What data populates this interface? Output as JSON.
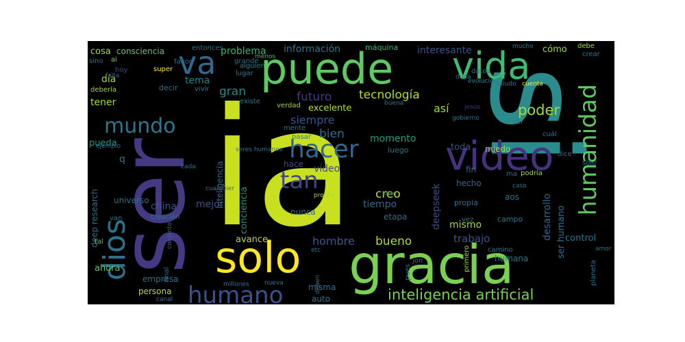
{
  "word_cloud": {
    "background": "#000000",
    "palette": [
      "#440154",
      "#46327e",
      "#365c8d",
      "#277f8e",
      "#1fa187",
      "#4ac16d",
      "#a0da39",
      "#fde725"
    ],
    "words": [
      {
        "text": "ia"
      },
      {
        "text": "si"
      },
      {
        "text": "ser"
      },
      {
        "text": "gracia"
      },
      {
        "text": "solo"
      },
      {
        "text": "puede"
      },
      {
        "text": "video"
      },
      {
        "text": "vida"
      },
      {
        "text": "va"
      },
      {
        "text": "dios"
      },
      {
        "text": "humanidad"
      },
      {
        "text": "hacer"
      },
      {
        "text": "humano"
      },
      {
        "text": "tan"
      },
      {
        "text": "mundo"
      },
      {
        "text": "inteligencia artificial"
      },
      {
        "text": "poder"
      },
      {
        "text": "tecnología"
      },
      {
        "text": "futuro"
      },
      {
        "text": "bien"
      },
      {
        "text": "siempre"
      },
      {
        "text": "información"
      },
      {
        "text": "interesante"
      },
      {
        "text": "problema"
      },
      {
        "text": "tema"
      },
      {
        "text": "gran"
      },
      {
        "text": "día"
      },
      {
        "text": "tener"
      },
      {
        "text": "excelente"
      },
      {
        "text": "así"
      },
      {
        "text": "momento"
      },
      {
        "text": "mejor"
      },
      {
        "text": "creo"
      },
      {
        "text": "bueno"
      },
      {
        "text": "hombre"
      },
      {
        "text": "trabajo"
      },
      {
        "text": "china"
      },
      {
        "text": "tiempo"
      },
      {
        "text": "mismo"
      },
      {
        "text": "deepseek"
      },
      {
        "text": "desarrollo"
      },
      {
        "text": "ser humano"
      },
      {
        "text": "control"
      },
      {
        "text": "conciencia"
      },
      {
        "text": "inteligencia"
      },
      {
        "text": "vídeo"
      },
      {
        "text": "avance"
      },
      {
        "text": "cosa"
      },
      {
        "text": "consciencia"
      },
      {
        "text": "pueda"
      },
      {
        "text": "universo"
      },
      {
        "text": "deep research"
      },
      {
        "text": "ahora"
      },
      {
        "text": "empresa"
      },
      {
        "text": "persona"
      },
      {
        "text": "auto"
      },
      {
        "text": "misma"
      },
      {
        "text": "humana"
      },
      {
        "text": "campo"
      },
      {
        "text": "fin"
      },
      {
        "text": "hecho"
      },
      {
        "text": "aos"
      },
      {
        "text": "propia"
      },
      {
        "text": "toda"
      },
      {
        "text": "miedo"
      },
      {
        "text": "cómo"
      },
      {
        "text": "máquina"
      },
      {
        "text": "luego"
      },
      {
        "text": "etapa"
      },
      {
        "text": "nunca"
      },
      {
        "text": "hace"
      },
      {
        "text": "decir"
      },
      {
        "text": "lugar"
      },
      {
        "text": "alguien"
      },
      {
        "text": "grande"
      },
      {
        "text": "existe"
      },
      {
        "text": "super"
      },
      {
        "text": "hoy"
      },
      {
        "text": "debería"
      },
      {
        "text": "falta"
      },
      {
        "text": "ai"
      },
      {
        "text": "sino"
      },
      {
        "text": "favor"
      },
      {
        "text": "vivir"
      },
      {
        "text": "entonces"
      },
      {
        "text": "menos"
      },
      {
        "text": "verdad"
      },
      {
        "text": "mente"
      },
      {
        "text": "pasar"
      },
      {
        "text": "datos"
      },
      {
        "text": "duda"
      },
      {
        "text": "evolucion"
      },
      {
        "text": "saludo"
      },
      {
        "text": "cuenta"
      },
      {
        "text": "gobierno"
      },
      {
        "text": "cuál"
      },
      {
        "text": "ver"
      },
      {
        "text": "ma"
      },
      {
        "text": "debe"
      },
      {
        "text": "crear"
      },
      {
        "text": "mucho"
      },
      {
        "text": "dice"
      },
      {
        "text": "sólo"
      },
      {
        "text": "podría"
      },
      {
        "text": "caso"
      },
      {
        "text": "vez"
      },
      {
        "text": "van"
      },
      {
        "text": "creación"
      },
      {
        "text": "tal"
      },
      {
        "text": "final"
      },
      {
        "text": "canal"
      },
      {
        "text": "millones"
      },
      {
        "text": "nueva"
      },
      {
        "text": "etc"
      },
      {
        "text": "pues"
      },
      {
        "text": "jon"
      },
      {
        "text": "primero"
      },
      {
        "text": "camino"
      },
      {
        "text": "planeta"
      },
      {
        "text": "amor"
      },
      {
        "text": "seres humanos"
      },
      {
        "text": "cualquier"
      },
      {
        "text": "ejemplo"
      },
      {
        "text": "cada"
      },
      {
        "text": "q"
      },
      {
        "text": "jesús"
      },
      {
        "text": "pronto"
      },
      {
        "text": "seor"
      },
      {
        "text": "buena"
      },
      {
        "text": "conjunto"
      },
      {
        "text": "deben"
      }
    ]
  }
}
